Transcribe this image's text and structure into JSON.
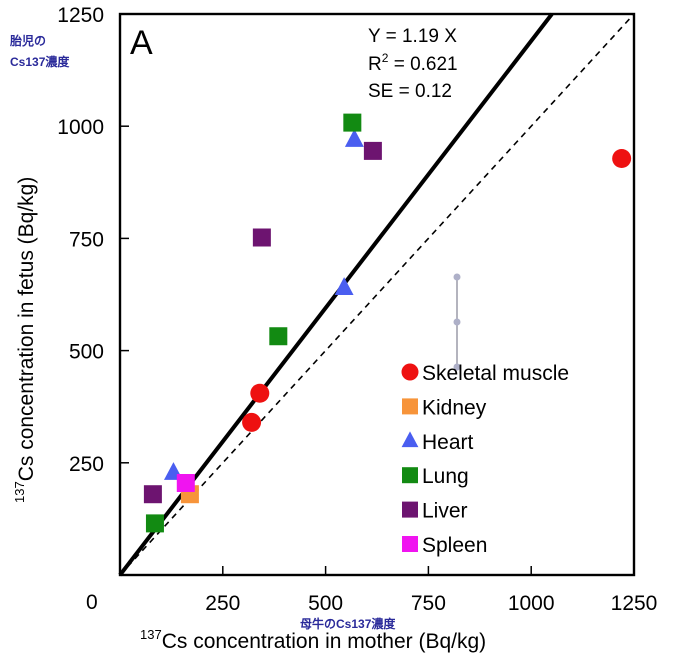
{
  "chart_data": {
    "type": "scatter",
    "panel_label": "A",
    "xlabel_sup": "137",
    "xlabel": "Cs concentration in mother  (Bq/kg)",
    "ylabel_sup": "137",
    "ylabel": "Cs concentration in fetus  (Bq/kg)",
    "xlim": [
      0,
      1250
    ],
    "ylim": [
      0,
      1250
    ],
    "x_ticks": [
      "250",
      "500",
      "750",
      "1000",
      "1250"
    ],
    "y_ticks": [
      "250",
      "500",
      "750",
      "1000",
      "1250"
    ],
    "origin_label": "0",
    "grid": false,
    "legend_position": "bottom-right",
    "stats": {
      "equation": "Y = 1.19 X",
      "r2_prefix": "R",
      "r2_sup": "2",
      "r2_value": " = 0.621",
      "se": "SE = 0.12"
    },
    "regression": {
      "slope": 1.19,
      "style": "solid"
    },
    "identity_line": {
      "slope": 1,
      "style": "dashed"
    },
    "series": [
      {
        "name": "Skeletal muscle",
        "marker": "circle",
        "color": "#ee1111",
        "points": [
          [
            320,
            340
          ],
          [
            340,
            405
          ],
          [
            1220,
            928
          ]
        ]
      },
      {
        "name": "Kidney",
        "marker": "square",
        "color": "#f7943a",
        "points": [
          [
            170,
            180
          ]
        ]
      },
      {
        "name": "Heart",
        "marker": "triangle",
        "color": "#4a5ef0",
        "points": [
          [
            130,
            228
          ],
          [
            545,
            640
          ],
          [
            570,
            970
          ]
        ]
      },
      {
        "name": "Lung",
        "marker": "square",
        "color": "#128a12",
        "points": [
          [
            85,
            115
          ],
          [
            385,
            532
          ],
          [
            565,
            1008
          ]
        ]
      },
      {
        "name": "Liver",
        "marker": "square",
        "color": "#6d1470",
        "points": [
          [
            80,
            180
          ],
          [
            345,
            752
          ],
          [
            615,
            945
          ]
        ]
      },
      {
        "name": "Spleen",
        "marker": "square",
        "color": "#f014f0",
        "points": [
          [
            160,
            205
          ]
        ]
      }
    ]
  },
  "annotations": {
    "fetus_jp_line1": "胎児の",
    "fetus_jp_line2": "Cs137濃度",
    "mother_jp": "母牛のCs137濃度"
  }
}
